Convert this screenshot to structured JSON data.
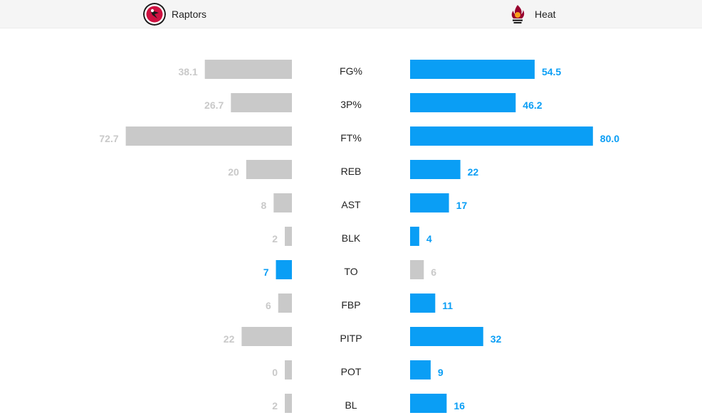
{
  "colors": {
    "leader": "#0a9ef5",
    "trailer": "#c9c9c9",
    "cat_text": "#222222"
  },
  "header": {
    "home": {
      "name": "Raptors",
      "logo_icon": "raptors-logo-icon"
    },
    "away": {
      "name": "Heat",
      "logo_icon": "heat-logo-icon"
    }
  },
  "chart_data": {
    "type": "bar",
    "title": "",
    "xlabel": "",
    "ylabel": "",
    "categories": [
      "FG%",
      "3P%",
      "FT%",
      "REB",
      "AST",
      "BLK",
      "TO",
      "FBP",
      "PITP",
      "POT",
      "BL"
    ],
    "series": [
      {
        "name": "Raptors",
        "side": "left",
        "values": [
          38.1,
          26.7,
          72.7,
          20,
          8,
          2,
          7,
          6,
          22,
          0,
          2
        ],
        "labels": [
          "38.1",
          "26.7",
          "72.7",
          "20",
          "8",
          "2",
          "7",
          "6",
          "22",
          "0",
          "2"
        ]
      },
      {
        "name": "Heat",
        "side": "right",
        "values": [
          54.5,
          46.2,
          80.0,
          22,
          17,
          4,
          6,
          11,
          32,
          9,
          16
        ],
        "labels": [
          "54.5",
          "46.2",
          "80.0",
          "22",
          "17",
          "4",
          "6",
          "11",
          "32",
          "9",
          "16"
        ]
      }
    ],
    "leader": [
      "Heat",
      "Heat",
      "Heat",
      "Heat",
      "Heat",
      "Heat",
      "Raptors",
      "Heat",
      "Heat",
      "Heat",
      "Heat"
    ],
    "grid": false,
    "legend": "none"
  }
}
